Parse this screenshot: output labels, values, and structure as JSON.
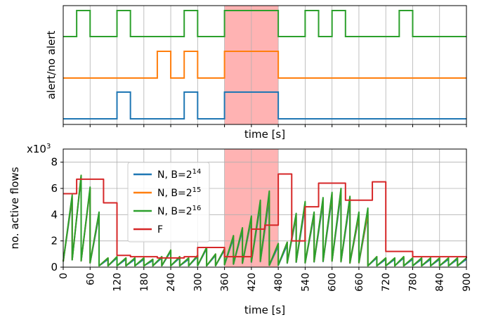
{
  "chart_data": [
    {
      "type": "line",
      "xlabel": "time [s]",
      "ylabel": "alert/no alert",
      "xlim": [
        0,
        900
      ],
      "xticks": [
        0,
        60,
        120,
        180,
        240,
        300,
        360,
        420,
        480,
        540,
        600,
        660,
        720,
        780,
        840,
        900
      ],
      "grid": true,
      "highlight_region": {
        "from": 360,
        "to": 480,
        "color": "#ffb3b3"
      },
      "series": [
        {
          "color": "#1f77b4",
          "baseline": 0,
          "alert_intervals": [
            [
              120,
              150
            ],
            [
              270,
              300
            ],
            [
              360,
              480
            ]
          ]
        },
        {
          "color": "#ff7f0e",
          "baseline": 1,
          "alert_intervals": [
            [
              210,
              240
            ],
            [
              270,
              300
            ],
            [
              360,
              480
            ]
          ]
        },
        {
          "color": "#2ca02c",
          "baseline": 2,
          "alert_intervals": [
            [
              30,
              60
            ],
            [
              120,
              150
            ],
            [
              270,
              300
            ],
            [
              360,
              480
            ],
            [
              540,
              570
            ],
            [
              600,
              630
            ],
            [
              750,
              780
            ]
          ]
        }
      ]
    },
    {
      "type": "line",
      "xlabel": "time [s]",
      "ylabel": "no. active flows",
      "y_multiplier": "x10",
      "y_multiplier_exp": "3",
      "xlim": [
        0,
        900
      ],
      "ylim": [
        0,
        9
      ],
      "xticks": [
        0,
        60,
        120,
        180,
        240,
        300,
        360,
        420,
        480,
        540,
        600,
        660,
        720,
        780,
        840,
        900
      ],
      "yticks": [
        0,
        2,
        4,
        6,
        8
      ],
      "grid": true,
      "legend_position": "upper-left-center",
      "highlight_region": {
        "from": 360,
        "to": 480,
        "color": "#ffb3b3"
      },
      "series": [
        {
          "name": "N, B=2",
          "name_exp": "14",
          "color": "#1f77b4",
          "peaks": [
            5.2,
            6.9,
            5.9,
            3.9,
            0.6,
            0.7,
            0.6,
            0.6,
            0.6,
            0.5,
            0.7,
            1.2,
            0.7,
            0.6,
            0.8,
            1.4,
            0.9,
            1.3,
            2.2,
            2.8,
            3.6,
            4.7,
            5.2,
            1.6,
            1.7,
            3.8,
            4.6,
            3.9,
            4.9,
            5.3,
            5.6,
            5.0,
            3.8,
            4.0,
            0.7,
            0.6,
            0.6,
            0.7,
            0.6,
            0.6,
            0.6,
            0.6,
            0.6,
            0.6,
            0.6
          ]
        },
        {
          "name": "N, B=2",
          "name_exp": "15",
          "color": "#ff7f0e",
          "peaks": [
            5.4,
            7.0,
            6.0,
            4.1,
            0.7,
            0.8,
            0.7,
            0.7,
            0.7,
            0.6,
            0.8,
            1.3,
            0.8,
            0.7,
            0.9,
            1.5,
            1.0,
            1.4,
            2.4,
            3.0,
            3.8,
            5.0,
            5.6,
            1.8,
            1.9,
            4.0,
            4.9,
            4.1,
            5.2,
            5.6,
            5.9,
            5.3,
            4.0,
            4.2,
            0.8,
            0.7,
            0.7,
            0.8,
            0.7,
            0.7,
            0.7,
            0.7,
            0.7,
            0.7,
            0.7
          ]
        },
        {
          "name": "N, B=2",
          "name_exp": "16",
          "color": "#2ca02c",
          "peaks": [
            5.5,
            7.0,
            6.1,
            4.2,
            0.7,
            0.8,
            0.7,
            0.7,
            0.7,
            0.6,
            0.8,
            1.3,
            0.8,
            0.7,
            0.9,
            1.5,
            1.0,
            1.4,
            2.4,
            3.0,
            3.9,
            5.1,
            5.8,
            1.8,
            1.9,
            4.1,
            5.0,
            4.2,
            5.3,
            5.7,
            6.0,
            5.4,
            4.2,
            4.5,
            0.8,
            0.7,
            0.7,
            0.8,
            0.7,
            0.7,
            0.7,
            0.7,
            0.7,
            0.7,
            0.7
          ]
        },
        {
          "name": "F",
          "color": "#d62728",
          "step_x": [
            0,
            30,
            90,
            120,
            150,
            210,
            270,
            300,
            360,
            420,
            450,
            480,
            510,
            540,
            570,
            630,
            690,
            720,
            780,
            900
          ],
          "step_y": [
            5.6,
            6.7,
            4.9,
            0.9,
            0.8,
            0.7,
            0.8,
            1.5,
            0.8,
            2.9,
            3.2,
            7.1,
            2.0,
            4.6,
            6.4,
            5.1,
            6.5,
            1.2,
            0.8,
            0.7
          ]
        }
      ]
    }
  ]
}
